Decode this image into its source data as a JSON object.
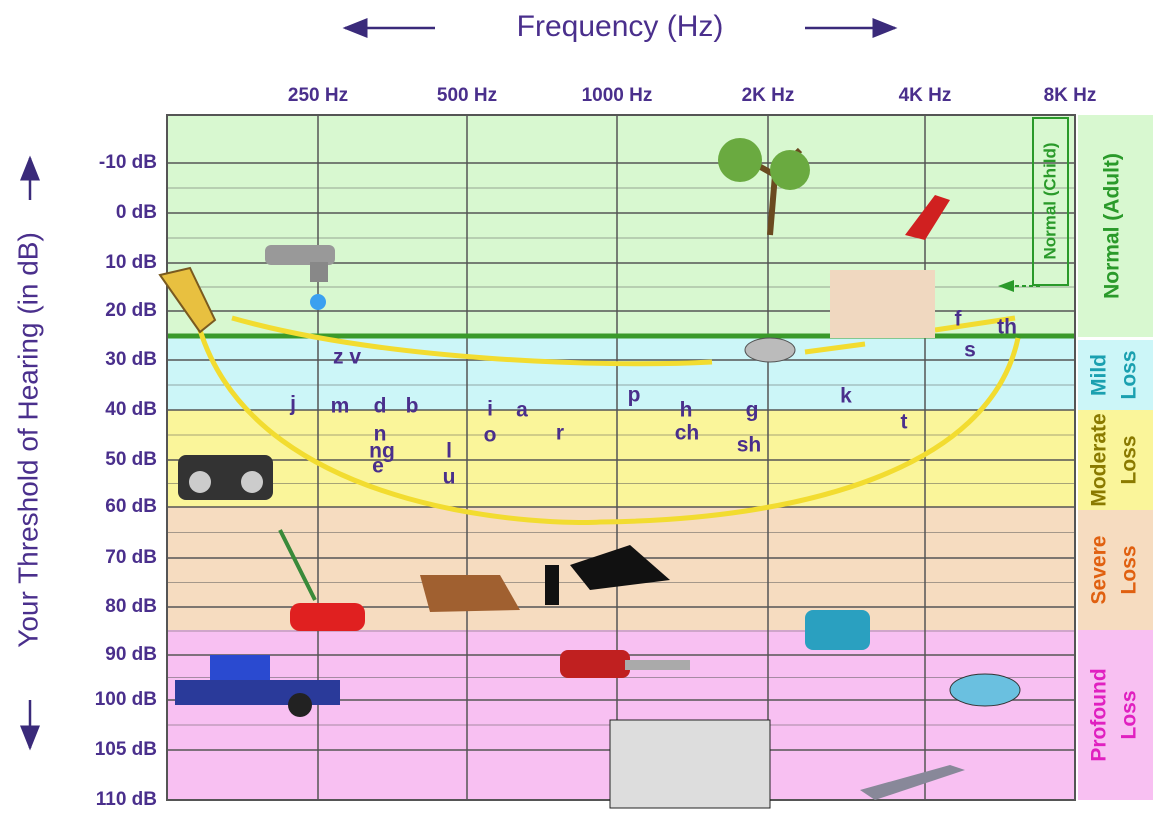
{
  "header": {
    "title": "Frequency (Hz)",
    "y_axis_title": "Your Threshold of Hearing (in dB)"
  },
  "frequencies": [
    "250 Hz",
    "500 Hz",
    "1000 Hz",
    "2K Hz",
    "4K Hz",
    "8K Hz"
  ],
  "levels": [
    "-10 dB",
    "0 dB",
    "10 dB",
    "20 dB",
    "30 dB",
    "40 dB",
    "50 dB",
    "60 dB",
    "70 dB",
    "80 dB",
    "90 dB",
    "100 dB",
    "105 dB",
    "110 dB"
  ],
  "zones": [
    {
      "lines": [
        "Normal (Adult)"
      ]
    },
    {
      "lines": [
        "Mild",
        "Loss"
      ]
    },
    {
      "lines": [
        "Moderate",
        "Loss"
      ]
    },
    {
      "lines": [
        "Severe",
        "Loss"
      ]
    },
    {
      "lines": [
        "Profound",
        "Loss"
      ]
    }
  ],
  "child_label": "Normal (Child)",
  "phonemes": [
    "z v",
    "j",
    "m",
    "d",
    "b",
    "n",
    "ng",
    "e",
    "l",
    "u",
    "i",
    "o",
    "a",
    "r",
    "p",
    "h",
    "ch",
    "g",
    "sh",
    "k",
    "t",
    "f",
    "s",
    "th"
  ]
}
